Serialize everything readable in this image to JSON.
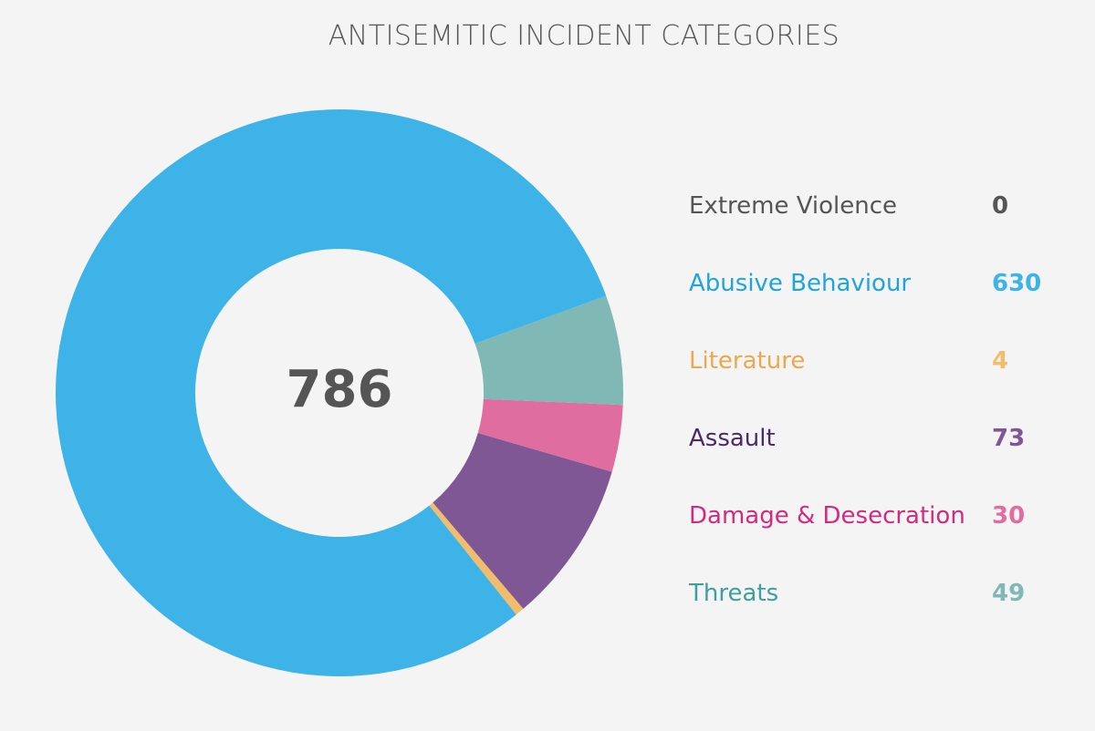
{
  "chart_data": {
    "type": "pie",
    "title": "ANTISEMITIC INCIDENT CATEGORIES",
    "total_label": "786",
    "slices": [
      {
        "name": "Extreme Violence",
        "value": 0,
        "value_label": "0",
        "label_color": "#555555",
        "value_color": "#555555",
        "color": "#555555"
      },
      {
        "name": "Abusive Behaviour",
        "value": 630,
        "value_label": "630",
        "label_color": "#1fa5dd",
        "value_color": "#3db3e8",
        "color": "#3db3e8"
      },
      {
        "name": "Literature",
        "value": 4,
        "value_label": "4",
        "label_color": "#e8a94f",
        "value_color": "#f1bd6c",
        "color": "#f1bd6c"
      },
      {
        "name": "Assault",
        "value": 73,
        "value_label": "73",
        "label_color": "#4b2a6b",
        "value_color": "#7f5794",
        "color": "#7f5794"
      },
      {
        "name": "Damage & Desecration",
        "value": 30,
        "value_label": "30",
        "label_color": "#d42a7d",
        "value_color": "#e06da0",
        "color": "#e06da0"
      },
      {
        "name": "Threats",
        "value": 49,
        "value_label": "49",
        "label_color": "#3f9f9c",
        "value_color": "#7fb8b5",
        "color": "#7fb8b5"
      }
    ]
  }
}
